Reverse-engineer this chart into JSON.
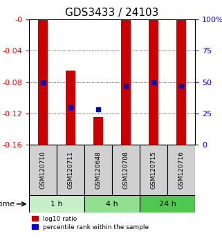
{
  "title": "GDS3433 / 24103",
  "samples": [
    "GSM120710",
    "GSM120711",
    "GSM120648",
    "GSM120708",
    "GSM120715",
    "GSM120716"
  ],
  "time_groups": [
    {
      "label": "1 h",
      "samples": [
        "GSM120710",
        "GSM120711"
      ],
      "color": "#c8f0c8"
    },
    {
      "label": "4 h",
      "samples": [
        "GSM120648",
        "GSM120708"
      ],
      "color": "#90e090"
    },
    {
      "label": "24 h",
      "samples": [
        "GSM120715",
        "GSM120716"
      ],
      "color": "#50c850"
    }
  ],
  "log10_ratio": [
    -0.163,
    -0.163,
    -0.163,
    -0.163,
    -0.163,
    -0.163
  ],
  "bar_tops": [
    0.0,
    -0.065,
    -0.125,
    0.0,
    0.0,
    0.0
  ],
  "percentile_rank": [
    0.5,
    0.3,
    0.28,
    0.47,
    0.5,
    0.47
  ],
  "ylim_left": [
    0.0,
    -0.16
  ],
  "yticks_left": [
    0.0,
    -0.04,
    -0.08,
    -0.12,
    -0.16
  ],
  "ytick_labels_left": [
    "-0",
    "-0.04",
    "-0.08",
    "-0.12",
    "-0.16"
  ],
  "yticks_right": [
    0.0,
    0.25,
    0.5,
    0.75,
    1.0
  ],
  "ytick_labels_right": [
    "0",
    "25",
    "50",
    "75",
    "100%"
  ],
  "bar_color": "#cc0000",
  "dot_color": "#0000cc",
  "background_color": "#ffffff",
  "title_fontsize": 11,
  "tick_label_fontsize": 8
}
